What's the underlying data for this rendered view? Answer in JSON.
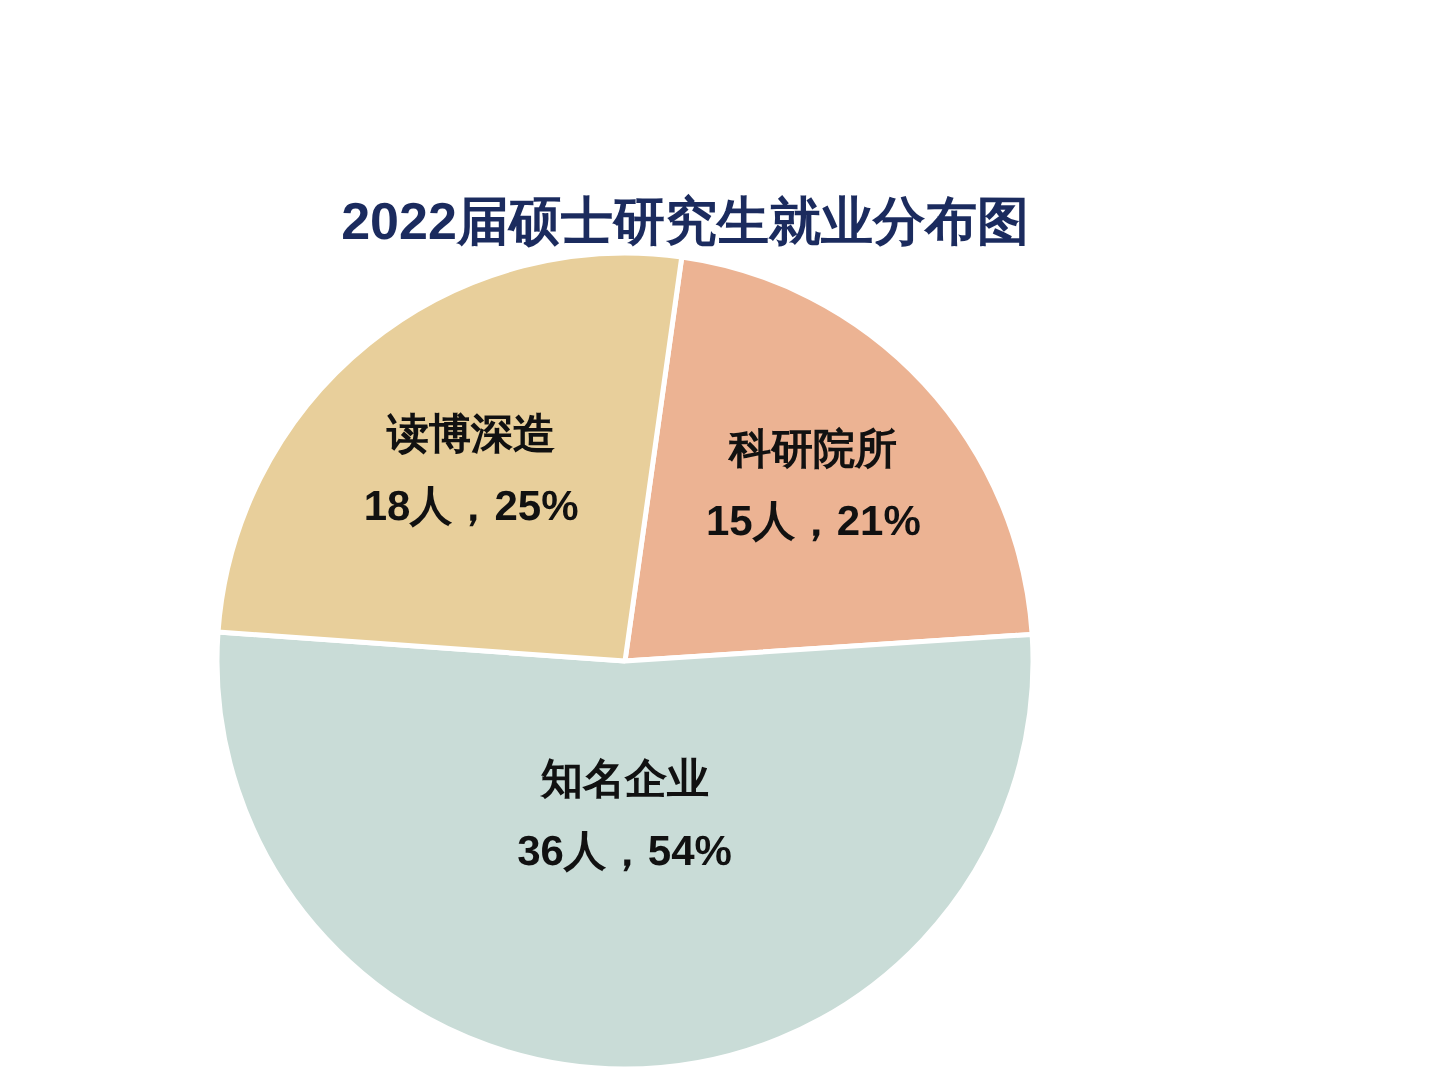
{
  "chart_data": {
    "type": "pie",
    "title": "2022届硕士研究生就业分布图",
    "categories": [
      "科研院所",
      "知名企业",
      "读博深造"
    ],
    "values": [
      15,
      36,
      18
    ],
    "value_labels": [
      "15人，21%",
      "36人，54%",
      "18人，25%"
    ],
    "colors": [
      "#ecb393",
      "#c9dcd7",
      "#e8cf9b"
    ],
    "legend": false
  }
}
